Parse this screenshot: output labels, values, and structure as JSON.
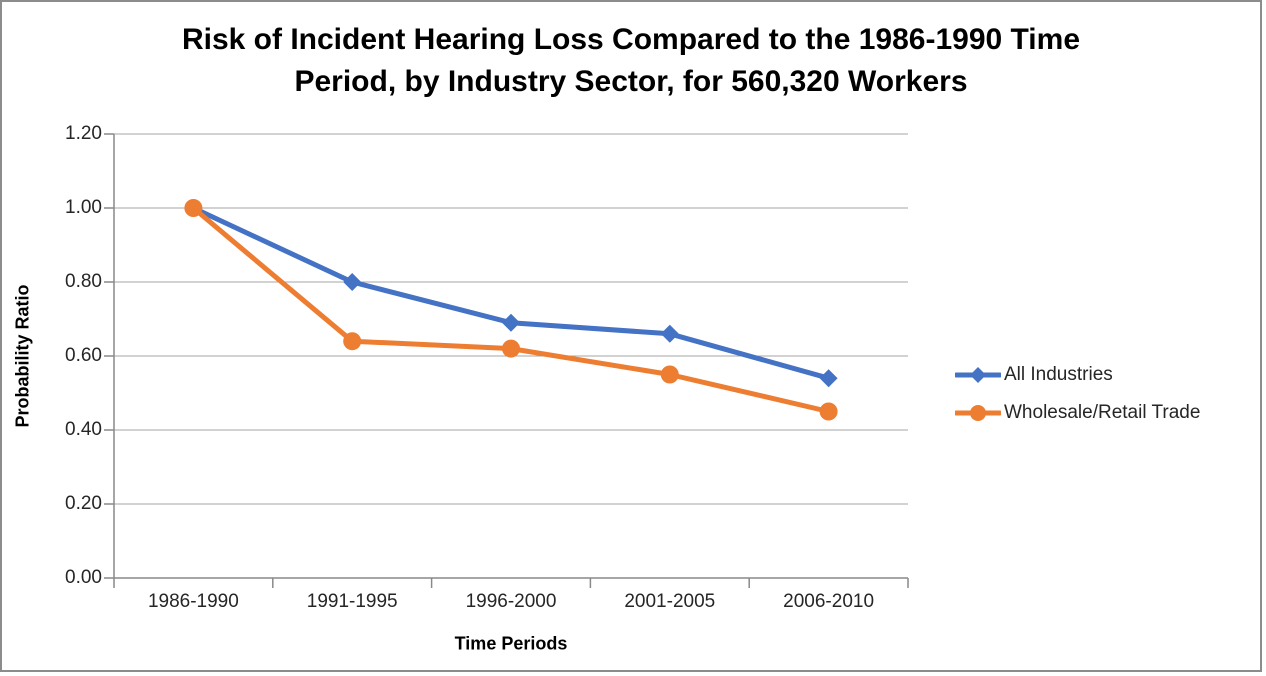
{
  "figure": {
    "background": "#FFFFFF",
    "border_color": "#8C8C8C"
  },
  "chart_data": {
    "type": "line",
    "title": "Risk of Incident Hearing Loss Compared to the 1986-1990 Time Period, by Industry Sector, for 560,320 Workers",
    "title_lines": [
      "Risk of Incident Hearing Loss Compared to the 1986-1990 Time",
      "Period, by Industry Sector, for 560,320 Workers"
    ],
    "xlabel": "Time Periods",
    "ylabel": "Probability Ratio",
    "categories": [
      "1986-1990",
      "1991-1995",
      "1996-2000",
      "2001-2005",
      "2006-2010"
    ],
    "series": [
      {
        "name": "All Industries",
        "marker": "diamond",
        "color": "#4472C4",
        "values": [
          1.0,
          0.8,
          0.69,
          0.66,
          0.54
        ]
      },
      {
        "name": "Wholesale/Retail Trade",
        "marker": "circle",
        "color": "#ED7D31",
        "values": [
          1.0,
          0.64,
          0.62,
          0.55,
          0.45
        ]
      }
    ],
    "ylim": [
      0,
      1.2
    ],
    "ytick_step": 0.2,
    "ytick_labels": [
      "0.00",
      "0.20",
      "0.40",
      "0.60",
      "0.80",
      "1.00",
      "1.20"
    ],
    "grid": true,
    "legend_position": "right",
    "colors": {
      "gridline": "#A6A6A6",
      "axis": "#898989",
      "tick_text": "#262626",
      "title_text": "#000000"
    }
  }
}
